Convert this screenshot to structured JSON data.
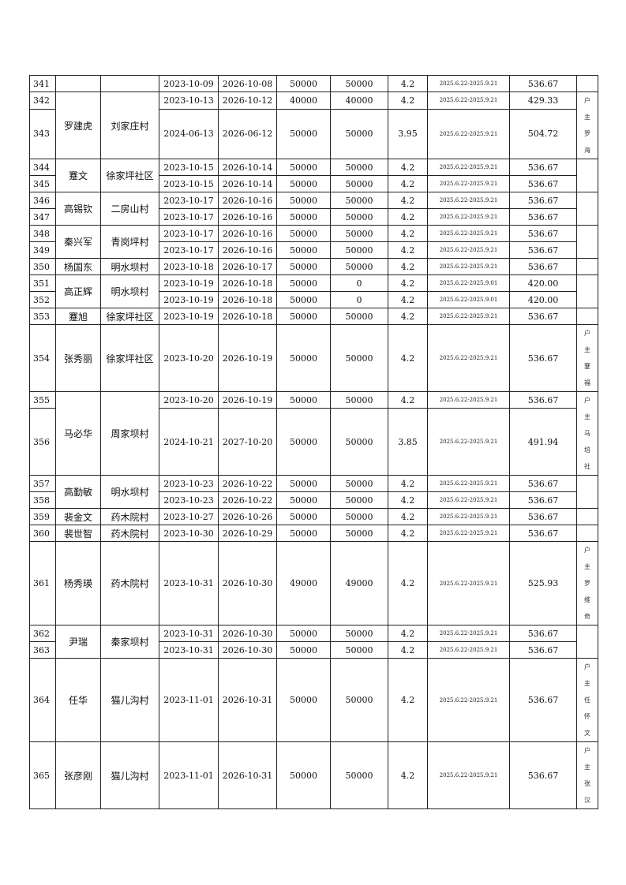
{
  "groups": [
    {
      "name": "",
      "village": "",
      "remark": "",
      "records": [
        {
          "no": "341",
          "start": "2023-10-09",
          "end": "2026-10-08",
          "amount": "50000",
          "balance": "50000",
          "rate": "4.2",
          "period": "2025.6.22-2025.9.21",
          "interest": "536.67"
        }
      ]
    },
    {
      "name": "罗建虎",
      "village": "刘家庄村",
      "remark": "户主罗海",
      "records": [
        {
          "no": "342",
          "start": "2023-10-13",
          "end": "2026-10-12",
          "amount": "40000",
          "balance": "40000",
          "rate": "4.2",
          "period": "2025.6.22-2025.9.21",
          "interest": "429.33"
        },
        {
          "no": "343",
          "start": "2024-06-13",
          "end": "2026-06-12",
          "amount": "50000",
          "balance": "50000",
          "rate": "3.95",
          "period": "2025.6.22-2025.9.21",
          "interest": "504.72"
        }
      ]
    },
    {
      "name": "蹇文",
      "village": "徐家坪社区",
      "remark": "",
      "records": [
        {
          "no": "344",
          "start": "2023-10-15",
          "end": "2026-10-14",
          "amount": "50000",
          "balance": "50000",
          "rate": "4.2",
          "period": "2025.6.22-2025.9.21",
          "interest": "536.67"
        },
        {
          "no": "345",
          "start": "2023-10-15",
          "end": "2026-10-14",
          "amount": "50000",
          "balance": "50000",
          "rate": "4.2",
          "period": "2025.6.22-2025.9.21",
          "interest": "536.67"
        }
      ]
    },
    {
      "name": "高锡钦",
      "village": "二房山村",
      "remark": "",
      "records": [
        {
          "no": "346",
          "start": "2023-10-17",
          "end": "2026-10-16",
          "amount": "50000",
          "balance": "50000",
          "rate": "4.2",
          "period": "2025.6.22-2025.9.21",
          "interest": "536.67"
        },
        {
          "no": "347",
          "start": "2023-10-17",
          "end": "2026-10-16",
          "amount": "50000",
          "balance": "50000",
          "rate": "4.2",
          "period": "2025.6.22-2025.9.21",
          "interest": "536.67"
        }
      ]
    },
    {
      "name": "秦兴军",
      "village": "青岗坪村",
      "remark": "",
      "records": [
        {
          "no": "348",
          "start": "2023-10-17",
          "end": "2026-10-16",
          "amount": "50000",
          "balance": "50000",
          "rate": "4.2",
          "period": "2025.6.22-2025.9.21",
          "interest": "536.67"
        },
        {
          "no": "349",
          "start": "2023-10-17",
          "end": "2026-10-16",
          "amount": "50000",
          "balance": "50000",
          "rate": "4.2",
          "period": "2025.6.22-2025.9.21",
          "interest": "536.67"
        }
      ]
    },
    {
      "name": "杨国东",
      "village": "明水坝村",
      "remark": "",
      "records": [
        {
          "no": "350",
          "start": "2023-10-18",
          "end": "2026-10-17",
          "amount": "50000",
          "balance": "50000",
          "rate": "4.2",
          "period": "2025.6.22-2025.9.21",
          "interest": "536.67"
        }
      ]
    },
    {
      "name": "高正辉",
      "village": "明水坝村",
      "remark": "",
      "records": [
        {
          "no": "351",
          "start": "2023-10-19",
          "end": "2026-10-18",
          "amount": "50000",
          "balance": "0",
          "rate": "4.2",
          "period": "2025.6.22-2025.9.01",
          "interest": "420.00"
        },
        {
          "no": "352",
          "start": "2023-10-19",
          "end": "2026-10-18",
          "amount": "50000",
          "balance": "0",
          "rate": "4.2",
          "period": "2025.6.22-2025.9.01",
          "interest": "420.00"
        }
      ]
    },
    {
      "name": "蹇旭",
      "village": "徐家坪社区",
      "remark": "",
      "records": [
        {
          "no": "353",
          "start": "2023-10-19",
          "end": "2026-10-18",
          "amount": "50000",
          "balance": "50000",
          "rate": "4.2",
          "period": "2025.6.22-2025.9.21",
          "interest": "536.67"
        }
      ]
    },
    {
      "name": "张秀丽",
      "village": "徐家坪社区",
      "remark": "户主蹇福",
      "records": [
        {
          "no": "354",
          "start": "2023-10-20",
          "end": "2026-10-19",
          "amount": "50000",
          "balance": "50000",
          "rate": "4.2",
          "period": "2025.6.22-2025.9.21",
          "interest": "536.67"
        }
      ]
    },
    {
      "name": "马必华",
      "village": "周家坝村",
      "remark": "户主马培社",
      "records": [
        {
          "no": "355",
          "start": "2023-10-20",
          "end": "2026-10-19",
          "amount": "50000",
          "balance": "50000",
          "rate": "4.2",
          "period": "2025.6.22-2025.9.21",
          "interest": "536.67"
        },
        {
          "no": "356",
          "start": "2024-10-21",
          "end": "2027-10-20",
          "amount": "50000",
          "balance": "50000",
          "rate": "3.85",
          "period": "2025.6.22-2025.9.21",
          "interest": "491.94"
        }
      ]
    },
    {
      "name": "高勤敏",
      "village": "明水坝村",
      "remark": "",
      "records": [
        {
          "no": "357",
          "start": "2023-10-23",
          "end": "2026-10-22",
          "amount": "50000",
          "balance": "50000",
          "rate": "4.2",
          "period": "2025.6.22-2025.9.21",
          "interest": "536.67"
        },
        {
          "no": "358",
          "start": "2023-10-23",
          "end": "2026-10-22",
          "amount": "50000",
          "balance": "50000",
          "rate": "4.2",
          "period": "2025.6.22-2025.9.21",
          "interest": "536.67"
        }
      ]
    },
    {
      "name": "裴金文",
      "village": "药木院村",
      "remark": "",
      "records": [
        {
          "no": "359",
          "start": "2023-10-27",
          "end": "2026-10-26",
          "amount": "50000",
          "balance": "50000",
          "rate": "4.2",
          "period": "2025.6.22-2025.9.21",
          "interest": "536.67"
        }
      ]
    },
    {
      "name": "裴世智",
      "village": "药木院村",
      "remark": "",
      "records": [
        {
          "no": "360",
          "start": "2023-10-30",
          "end": "2026-10-29",
          "amount": "50000",
          "balance": "50000",
          "rate": "4.2",
          "period": "2025.6.22-2025.9.21",
          "interest": "536.67"
        }
      ]
    },
    {
      "name": "杨秀瑛",
      "village": "药木院村",
      "remark": "户主罗维奇",
      "records": [
        {
          "no": "361",
          "start": "2023-10-31",
          "end": "2026-10-30",
          "amount": "49000",
          "balance": "49000",
          "rate": "4.2",
          "period": "2025.6.22-2025.9.21",
          "interest": "525.93"
        }
      ]
    },
    {
      "name": "尹瑞",
      "village": "秦家坝村",
      "remark": "",
      "records": [
        {
          "no": "362",
          "start": "2023-10-31",
          "end": "2026-10-30",
          "amount": "50000",
          "balance": "50000",
          "rate": "4.2",
          "period": "2025.6.22-2025.9.21",
          "interest": "536.67"
        },
        {
          "no": "363",
          "start": "2023-10-31",
          "end": "2026-10-30",
          "amount": "50000",
          "balance": "50000",
          "rate": "4.2",
          "period": "2025.6.22-2025.9.21",
          "interest": "536.67"
        }
      ]
    },
    {
      "name": "任华",
      "village": "猫儿沟村",
      "remark": "户主任怀文",
      "records": [
        {
          "no": "364",
          "start": "2023-11-01",
          "end": "2026-10-31",
          "amount": "50000",
          "balance": "50000",
          "rate": "4.2",
          "period": "2025.6.22-2025.9.21",
          "interest": "536.67"
        }
      ]
    },
    {
      "name": "张彦刚",
      "village": "猫儿沟村",
      "remark": "户主张汉",
      "records": [
        {
          "no": "365",
          "start": "2023-11-01",
          "end": "2026-10-31",
          "amount": "50000",
          "balance": "50000",
          "rate": "4.2",
          "period": "2025.6.22-2025.9.21",
          "interest": "536.67"
        }
      ]
    }
  ]
}
